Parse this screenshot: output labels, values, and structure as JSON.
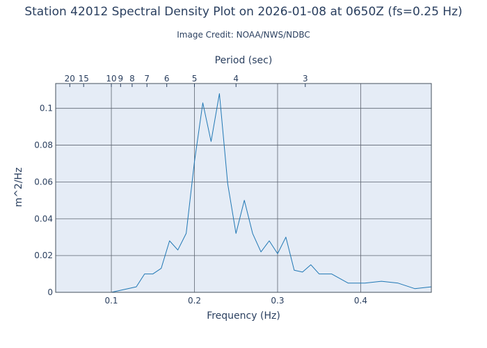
{
  "chart_data": {
    "type": "line",
    "title": "Station 42012 Spectral Density Plot  on 2026-01-08 at 0650Z (fs=0.25 Hz)",
    "subtitle": "Image Credit: NOAA/NWS/NDBC",
    "xlabel": "Frequency (Hz)",
    "ylabel": "m^2/Hz",
    "top_axis_label": "Period (sec)",
    "xlim": [
      0.033,
      0.485
    ],
    "ylim": [
      0,
      0.1135
    ],
    "x_ticks": [
      0.1,
      0.2,
      0.3,
      0.4
    ],
    "x_tick_labels": [
      "0.1",
      "0.2",
      "0.3",
      "0.4"
    ],
    "y_ticks": [
      0,
      0.02,
      0.04,
      0.06,
      0.08,
      0.1
    ],
    "y_tick_labels": [
      "0",
      "0.02",
      "0.04",
      "0.06",
      "0.08",
      "0.1"
    ],
    "top_ticks": [
      20,
      15,
      10,
      9,
      8,
      7,
      6,
      5,
      4,
      3
    ],
    "top_tick_labels": [
      "20",
      "15",
      "10",
      "9",
      "8",
      "7",
      "6",
      "5",
      "4",
      "3"
    ],
    "grid": true,
    "line_color": "#1f77b4",
    "background_color": "#e5ecf6",
    "x": [
      0.033,
      0.1,
      0.11,
      0.12,
      0.13,
      0.14,
      0.15,
      0.16,
      0.17,
      0.18,
      0.19,
      0.2,
      0.21,
      0.22,
      0.23,
      0.24,
      0.25,
      0.26,
      0.27,
      0.28,
      0.29,
      0.3,
      0.31,
      0.32,
      0.33,
      0.34,
      0.35,
      0.365,
      0.385,
      0.405,
      0.425,
      0.445,
      0.465,
      0.485
    ],
    "values": [
      0,
      0,
      0.001,
      0.002,
      0.003,
      0.01,
      0.01,
      0.013,
      0.028,
      0.023,
      0.032,
      0.071,
      0.103,
      0.082,
      0.108,
      0.059,
      0.032,
      0.05,
      0.032,
      0.022,
      0.028,
      0.021,
      0.03,
      0.012,
      0.011,
      0.015,
      0.01,
      0.01,
      0.005,
      0.005,
      0.006,
      0.005,
      0.002,
      0.003
    ]
  }
}
